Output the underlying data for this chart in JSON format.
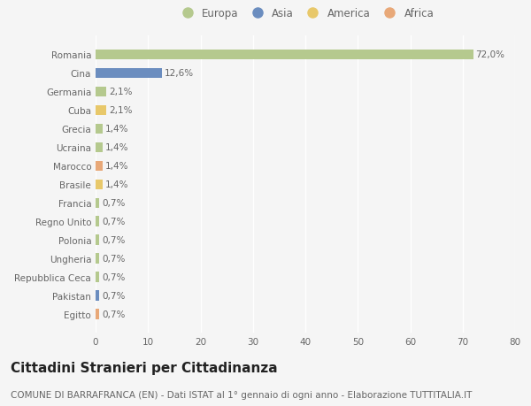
{
  "countries": [
    "Romania",
    "Cina",
    "Germania",
    "Cuba",
    "Grecia",
    "Ucraina",
    "Marocco",
    "Brasile",
    "Francia",
    "Regno Unito",
    "Polonia",
    "Ungheria",
    "Repubblica Ceca",
    "Pakistan",
    "Egitto"
  ],
  "values": [
    72.0,
    12.6,
    2.1,
    2.1,
    1.4,
    1.4,
    1.4,
    1.4,
    0.7,
    0.7,
    0.7,
    0.7,
    0.7,
    0.7,
    0.7
  ],
  "labels": [
    "72,0%",
    "12,6%",
    "2,1%",
    "2,1%",
    "1,4%",
    "1,4%",
    "1,4%",
    "1,4%",
    "0,7%",
    "0,7%",
    "0,7%",
    "0,7%",
    "0,7%",
    "0,7%",
    "0,7%"
  ],
  "continents": [
    "Europa",
    "Asia",
    "Europa",
    "America",
    "Europa",
    "Europa",
    "Africa",
    "America",
    "Europa",
    "Europa",
    "Europa",
    "Europa",
    "Europa",
    "Asia",
    "Africa"
  ],
  "colors": {
    "Europa": "#b5c98e",
    "Asia": "#6b8dbf",
    "America": "#e8c86a",
    "Africa": "#e8a878"
  },
  "xlim": [
    0,
    80
  ],
  "xticks": [
    0,
    10,
    20,
    30,
    40,
    50,
    60,
    70,
    80
  ],
  "background_color": "#f5f5f5",
  "grid_color": "#ffffff",
  "title": "Cittadini Stranieri per Cittadinanza",
  "subtitle": "COMUNE DI BARRAFRANCA (EN) - Dati ISTAT al 1° gennaio di ogni anno - Elaborazione TUTTITALIA.IT",
  "title_fontsize": 11,
  "subtitle_fontsize": 7.5,
  "label_fontsize": 7.5,
  "tick_fontsize": 7.5,
  "legend_fontsize": 8.5,
  "legend_order": [
    "Europa",
    "Asia",
    "America",
    "Africa"
  ]
}
